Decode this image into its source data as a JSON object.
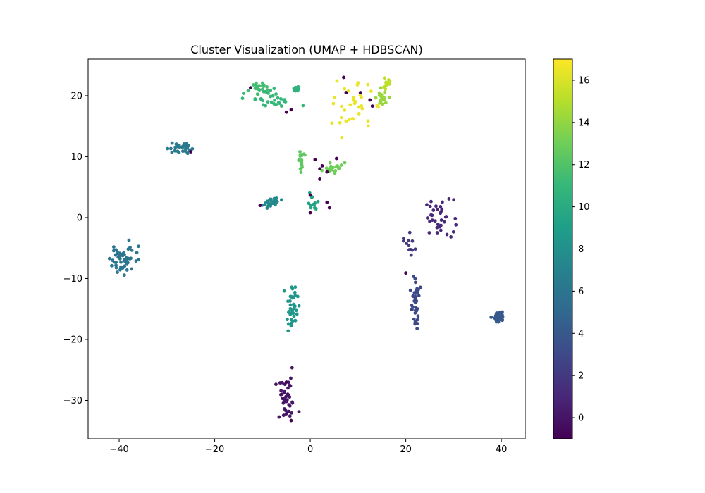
{
  "chart_data": {
    "type": "scatter",
    "title": "Cluster Visualization (UMAP + HDBSCAN)",
    "xlabel": "",
    "ylabel": "",
    "xlim": [
      -46.5,
      45
    ],
    "ylim": [
      -36.3,
      26
    ],
    "xticks": [
      -40,
      -20,
      0,
      20,
      40
    ],
    "xtick_labels": [
      "−40",
      "−20",
      "0",
      "20",
      "40"
    ],
    "yticks": [
      -30,
      -20,
      -10,
      0,
      10,
      20
    ],
    "ytick_labels": [
      "−30",
      "−20",
      "−10",
      "0",
      "10",
      "20"
    ],
    "colorbar": {
      "colormap": "viridis",
      "range": [
        -1,
        17
      ],
      "ticks": [
        0,
        2,
        4,
        6,
        8,
        10,
        12,
        14,
        16
      ],
      "tick_labels": [
        "0",
        "2",
        "4",
        "6",
        "8",
        "10",
        "12",
        "14",
        "16"
      ]
    },
    "colormap_stops": [
      "#440154",
      "#482878",
      "#3e4989",
      "#31688e",
      "#26828e",
      "#1f9e89",
      "#35b779",
      "#6ece58",
      "#b5de2b",
      "#fde725"
    ],
    "grid": false,
    "legend": "none",
    "clusters": [
      {
        "label": 0,
        "cx": -5,
        "cy": -30,
        "sx": 1.2,
        "sy": 1.8,
        "n": 40
      },
      {
        "label": 1,
        "cx": 27,
        "cy": 0,
        "sx": 1.5,
        "sy": 1.5,
        "n": 35
      },
      {
        "label": 2,
        "cx": 21,
        "cy": -5,
        "sx": 0.8,
        "sy": 1.2,
        "n": 12
      },
      {
        "label": 3,
        "cx": 22,
        "cy": -14,
        "sx": 0.4,
        "sy": 2.2,
        "n": 40
      },
      {
        "label": 4,
        "cx": 39.5,
        "cy": -16.3,
        "sx": 0.5,
        "sy": 0.4,
        "n": 45
      },
      {
        "label": 6,
        "cx": -39,
        "cy": -6.5,
        "sx": 1.5,
        "sy": 1.5,
        "n": 50
      },
      {
        "label": 6.3,
        "cx": -27.5,
        "cy": 11.5,
        "sx": 1.2,
        "sy": 0.5,
        "n": 30
      },
      {
        "label": 7.5,
        "cx": -8,
        "cy": 2.5,
        "sx": 1.0,
        "sy": 0.4,
        "n": 25
      },
      {
        "label": 8.5,
        "cx": -3.8,
        "cy": -15,
        "sx": 0.6,
        "sy": 1.8,
        "n": 40
      },
      {
        "label": 9.5,
        "cx": 0.5,
        "cy": 2.5,
        "sx": 0.5,
        "sy": 0.6,
        "n": 12
      },
      {
        "label": 10.5,
        "cx": -3,
        "cy": 21,
        "sx": 0.4,
        "sy": 0.2,
        "n": 15
      },
      {
        "label": 11,
        "cx": -8,
        "cy": 19.5,
        "sx": 2.5,
        "sy": 1.0,
        "n": 35
      },
      {
        "label": 11.5,
        "cx": -11,
        "cy": 21.5,
        "sx": 0.8,
        "sy": 0.5,
        "n": 20
      },
      {
        "label": 12.5,
        "cx": -2,
        "cy": 9.5,
        "sx": 0.3,
        "sy": 0.8,
        "n": 18
      },
      {
        "label": 13,
        "cx": 4.5,
        "cy": 8,
        "sx": 1.5,
        "sy": 0.6,
        "n": 20
      },
      {
        "label": 14.2,
        "cx": 15,
        "cy": 19.5,
        "sx": 0.6,
        "sy": 0.6,
        "n": 20
      },
      {
        "label": 15.2,
        "cx": 16,
        "cy": 22,
        "sx": 0.5,
        "sy": 0.4,
        "n": 22
      },
      {
        "label": 16.5,
        "cx": 9,
        "cy": 18,
        "sx": 2.0,
        "sy": 2.0,
        "n": 35
      }
    ],
    "noise_points": [
      [
        -5,
        17.3
      ],
      [
        -4,
        17.7
      ],
      [
        7,
        23
      ],
      [
        10.5,
        20.5
      ],
      [
        12.5,
        19.3
      ],
      [
        13,
        18.3
      ],
      [
        7.5,
        20.5
      ],
      [
        1,
        9.5
      ],
      [
        2,
        8
      ],
      [
        2.5,
        8.5
      ],
      [
        3.5,
        7.5
      ],
      [
        5.5,
        9.7
      ],
      [
        2,
        6.3
      ],
      [
        -25,
        10.8
      ],
      [
        -10.5,
        2
      ],
      [
        0,
        3.7
      ],
      [
        0,
        0.8
      ],
      [
        3.5,
        2.5
      ],
      [
        4,
        1.6
      ],
      [
        20,
        -9.1
      ],
      [
        -5,
        -27
      ],
      [
        -4,
        -33.3
      ],
      [
        -12.5,
        21.3
      ]
    ]
  }
}
